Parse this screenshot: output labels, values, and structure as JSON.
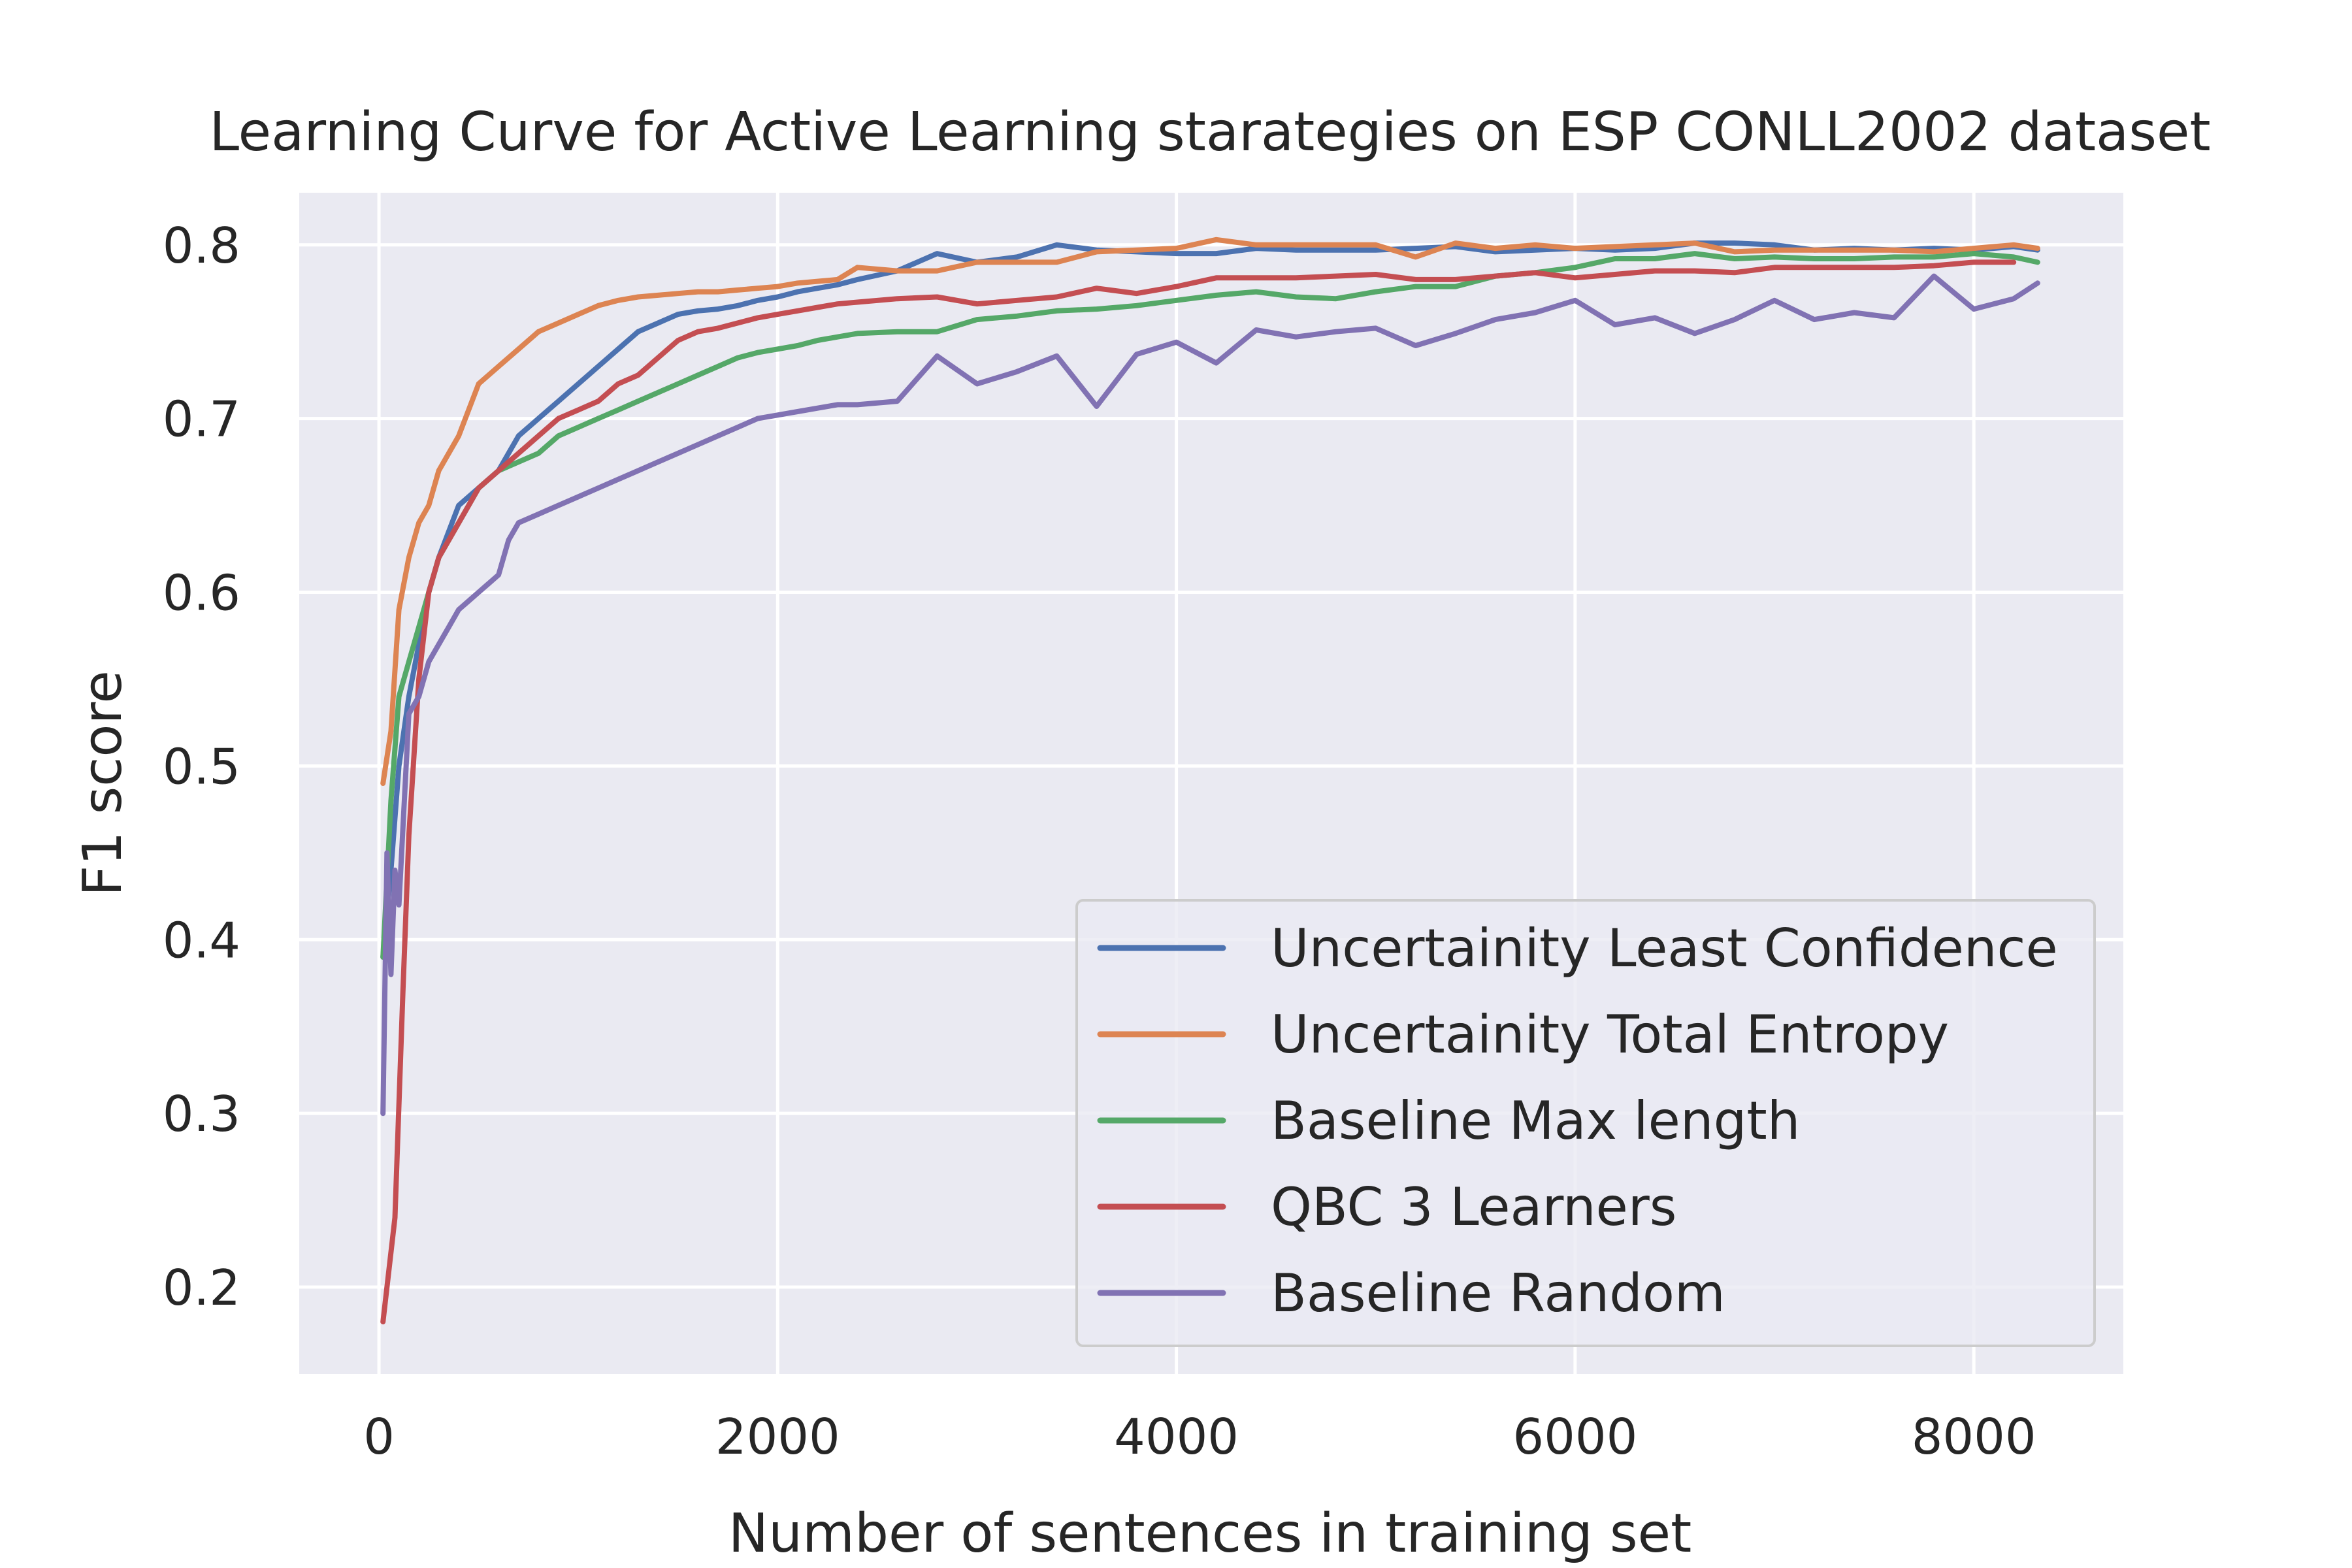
{
  "chart_data": {
    "type": "line",
    "title": "Learning Curve for Active Learning starategies on ESP CONLL2002 dataset",
    "xlabel": "Number of sentences in training set",
    "ylabel": "F1 score",
    "xlim": [
      -400,
      8750
    ],
    "ylim": [
      0.15,
      0.83
    ],
    "xticks": [
      0,
      2000,
      4000,
      6000,
      8000
    ],
    "xtick_labels": [
      "0",
      "2000",
      "4000",
      "6000",
      "8000"
    ],
    "yticks": [
      0.2,
      0.3,
      0.4,
      0.5,
      0.6,
      0.7,
      0.8
    ],
    "ytick_labels": [
      "0.2",
      "0.3",
      "0.4",
      "0.5",
      "0.6",
      "0.7",
      "0.8"
    ],
    "grid": true,
    "background": "#eaeaf2",
    "legend_position": "lower right",
    "series": [
      {
        "name": "Uncertainity Least Confidence",
        "color": "#4c72b0",
        "x": [
          20,
          60,
          100,
          150,
          200,
          250,
          300,
          400,
          500,
          600,
          700,
          800,
          900,
          1000,
          1100,
          1200,
          1300,
          1400,
          1500,
          1600,
          1700,
          1800,
          1900,
          2000,
          2100,
          2200,
          2300,
          2400,
          2600,
          2800,
          3000,
          3200,
          3400,
          3600,
          3800,
          4000,
          4200,
          4400,
          4600,
          4800,
          5000,
          5200,
          5400,
          5600,
          5800,
          6000,
          6200,
          6400,
          6600,
          6800,
          7000,
          7200,
          7400,
          7600,
          7800,
          8000,
          8200,
          8320
        ],
        "y": [
          0.39,
          0.44,
          0.5,
          0.54,
          0.57,
          0.6,
          0.62,
          0.65,
          0.66,
          0.67,
          0.69,
          0.7,
          0.71,
          0.72,
          0.73,
          0.74,
          0.75,
          0.755,
          0.76,
          0.762,
          0.763,
          0.765,
          0.768,
          0.77,
          0.773,
          0.775,
          0.777,
          0.78,
          0.785,
          0.795,
          0.79,
          0.793,
          0.8,
          0.797,
          0.796,
          0.795,
          0.795,
          0.798,
          0.797,
          0.797,
          0.797,
          0.798,
          0.799,
          0.796,
          0.797,
          0.798,
          0.797,
          0.798,
          0.801,
          0.801,
          0.8,
          0.797,
          0.798,
          0.797,
          0.798,
          0.797,
          0.799,
          0.797
        ]
      },
      {
        "name": "Uncertainity Total Entropy",
        "color": "#dd8452",
        "x": [
          20,
          60,
          100,
          150,
          200,
          250,
          300,
          400,
          500,
          600,
          700,
          800,
          900,
          1000,
          1100,
          1200,
          1300,
          1400,
          1500,
          1600,
          1700,
          1800,
          1900,
          2000,
          2100,
          2200,
          2300,
          2400,
          2600,
          2800,
          3000,
          3200,
          3400,
          3600,
          3800,
          4000,
          4200,
          4400,
          4600,
          4800,
          5000,
          5200,
          5400,
          5600,
          5800,
          6000,
          6200,
          6400,
          6600,
          6800,
          7000,
          7200,
          7400,
          7600,
          7800,
          8000,
          8200,
          8320
        ],
        "y": [
          0.49,
          0.52,
          0.59,
          0.62,
          0.64,
          0.65,
          0.67,
          0.69,
          0.72,
          0.73,
          0.74,
          0.75,
          0.755,
          0.76,
          0.765,
          0.768,
          0.77,
          0.771,
          0.772,
          0.773,
          0.773,
          0.774,
          0.775,
          0.776,
          0.778,
          0.779,
          0.78,
          0.787,
          0.785,
          0.785,
          0.79,
          0.79,
          0.79,
          0.796,
          0.797,
          0.798,
          0.803,
          0.8,
          0.8,
          0.8,
          0.8,
          0.793,
          0.801,
          0.798,
          0.8,
          0.798,
          0.799,
          0.8,
          0.801,
          0.796,
          0.797,
          0.797,
          0.797,
          0.797,
          0.796,
          0.798,
          0.8,
          0.798
        ]
      },
      {
        "name": "Baseline Max length",
        "color": "#55a868",
        "x": [
          20,
          60,
          100,
          150,
          200,
          250,
          300,
          400,
          500,
          600,
          700,
          800,
          900,
          1000,
          1100,
          1200,
          1300,
          1400,
          1500,
          1600,
          1700,
          1800,
          1900,
          2000,
          2100,
          2200,
          2300,
          2400,
          2600,
          2800,
          3000,
          3200,
          3400,
          3600,
          3800,
          4000,
          4200,
          4400,
          4600,
          4800,
          5000,
          5200,
          5400,
          5600,
          5800,
          6000,
          6200,
          6400,
          6600,
          6800,
          7000,
          7200,
          7400,
          7600,
          7800,
          8000,
          8200,
          8320
        ],
        "y": [
          0.39,
          0.48,
          0.54,
          0.56,
          0.58,
          0.6,
          0.62,
          0.64,
          0.66,
          0.67,
          0.675,
          0.68,
          0.69,
          0.695,
          0.7,
          0.705,
          0.71,
          0.715,
          0.72,
          0.725,
          0.73,
          0.735,
          0.738,
          0.74,
          0.742,
          0.745,
          0.747,
          0.749,
          0.75,
          0.75,
          0.757,
          0.759,
          0.762,
          0.763,
          0.765,
          0.768,
          0.771,
          0.773,
          0.77,
          0.769,
          0.773,
          0.776,
          0.776,
          0.782,
          0.784,
          0.787,
          0.792,
          0.792,
          0.795,
          0.792,
          0.793,
          0.792,
          0.792,
          0.793,
          0.793,
          0.795,
          0.793,
          0.79
        ]
      },
      {
        "name": "QBC 3 Learners",
        "color": "#c44e52",
        "x": [
          20,
          40,
          80,
          120,
          150,
          200,
          250,
          300,
          400,
          500,
          600,
          700,
          800,
          900,
          1000,
          1100,
          1200,
          1300,
          1400,
          1500,
          1600,
          1700,
          1800,
          1900,
          2000,
          2100,
          2200,
          2300,
          2400,
          2600,
          2800,
          3000,
          3200,
          3400,
          3600,
          3800,
          4000,
          4200,
          4400,
          4600,
          4800,
          5000,
          5200,
          5400,
          5600,
          5800,
          6000,
          6200,
          6400,
          6600,
          6800,
          7000,
          7200,
          7400,
          7600,
          7800,
          8000,
          8200
        ],
        "y": [
          0.18,
          0.2,
          0.24,
          0.37,
          0.46,
          0.55,
          0.6,
          0.62,
          0.64,
          0.66,
          0.67,
          0.68,
          0.69,
          0.7,
          0.705,
          0.71,
          0.72,
          0.725,
          0.735,
          0.745,
          0.75,
          0.752,
          0.755,
          0.758,
          0.76,
          0.762,
          0.764,
          0.766,
          0.767,
          0.769,
          0.77,
          0.766,
          0.768,
          0.77,
          0.775,
          0.772,
          0.776,
          0.781,
          0.781,
          0.781,
          0.782,
          0.783,
          0.78,
          0.78,
          0.782,
          0.784,
          0.781,
          0.783,
          0.785,
          0.785,
          0.784,
          0.787,
          0.787,
          0.787,
          0.787,
          0.788,
          0.79,
          0.79
        ]
      },
      {
        "name": "Baseline Random",
        "color": "#8172b3",
        "x": [
          20,
          40,
          60,
          80,
          100,
          150,
          200,
          250,
          300,
          350,
          400,
          450,
          500,
          550,
          600,
          650,
          700,
          800,
          900,
          1000,
          1100,
          1200,
          1300,
          1400,
          1500,
          1600,
          1700,
          1800,
          1900,
          2000,
          2100,
          2200,
          2300,
          2400,
          2600,
          2800,
          3000,
          3200,
          3400,
          3600,
          3800,
          4000,
          4200,
          4400,
          4600,
          4800,
          5000,
          5200,
          5400,
          5600,
          5800,
          6000,
          6200,
          6400,
          6600,
          6800,
          7000,
          7200,
          7400,
          7600,
          7800,
          8000,
          8200,
          8320
        ],
        "y": [
          0.3,
          0.45,
          0.38,
          0.44,
          0.42,
          0.53,
          0.54,
          0.56,
          0.57,
          0.58,
          0.59,
          0.595,
          0.6,
          0.605,
          0.61,
          0.63,
          0.64,
          0.645,
          0.65,
          0.655,
          0.66,
          0.665,
          0.67,
          0.675,
          0.68,
          0.685,
          0.69,
          0.695,
          0.7,
          0.702,
          0.704,
          0.706,
          0.708,
          0.708,
          0.71,
          0.736,
          0.72,
          0.727,
          0.736,
          0.707,
          0.737,
          0.744,
          0.732,
          0.751,
          0.747,
          0.75,
          0.752,
          0.742,
          0.749,
          0.757,
          0.761,
          0.768,
          0.754,
          0.758,
          0.749,
          0.757,
          0.768,
          0.757,
          0.761,
          0.758,
          0.782,
          0.763,
          0.769,
          0.778
        ]
      }
    ]
  }
}
